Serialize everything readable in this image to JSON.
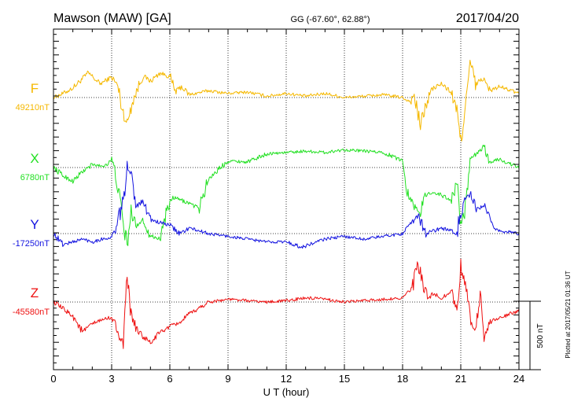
{
  "chart_data": {
    "type": "line",
    "title": "Mawson (MAW)  [GA]",
    "coords": "GG (-67.60°,  62.88°)",
    "date": "2017/04/20",
    "xlabel": "U T (hour)",
    "xlim": [
      0,
      24
    ],
    "xticks": [
      "0",
      "3",
      "6",
      "9",
      "12",
      "15",
      "18",
      "21",
      "24"
    ],
    "scale_label": "500 nT",
    "plotted_note": "Plotted at 2017/05/21 01:36 UT",
    "grid": true,
    "units": "nT",
    "series": [
      {
        "name": "F",
        "baseline_label": "49210nT",
        "baseline": 49210,
        "color": "#f5b800",
        "x": [
          0,
          0.5,
          1,
          1.8,
          2.4,
          3,
          3.3,
          3.6,
          3.8,
          4.0,
          4.3,
          4.6,
          5.0,
          5.5,
          6.0,
          6.3,
          6.6,
          7.0,
          8,
          9,
          10,
          11,
          12,
          13,
          14,
          15,
          16,
          17,
          18,
          18.4,
          18.6,
          18.9,
          19.2,
          19.5,
          20,
          20.5,
          20.8,
          21.0,
          21.2,
          21.5,
          21.8,
          22.1,
          22.5,
          23,
          24
        ],
        "values": [
          0,
          30,
          70,
          180,
          100,
          150,
          90,
          -120,
          -190,
          -60,
          50,
          160,
          120,
          180,
          150,
          40,
          80,
          20,
          50,
          30,
          40,
          10,
          30,
          10,
          30,
          0,
          10,
          20,
          0,
          -30,
          20,
          -210,
          -60,
          60,
          100,
          40,
          -100,
          -320,
          -100,
          250,
          80,
          150,
          50,
          80,
          30
        ]
      },
      {
        "name": "X",
        "baseline_label": "6780nT",
        "baseline": 6780,
        "color": "#22e022",
        "x": [
          0,
          0.5,
          1,
          1.5,
          2.0,
          2.6,
          3.0,
          3.3,
          3.6,
          3.8,
          4.0,
          4.3,
          4.6,
          5.0,
          5.5,
          5.8,
          6.2,
          6.6,
          7.0,
          7.5,
          8.0,
          9,
          10,
          11,
          12,
          13,
          14,
          15,
          16,
          17,
          18,
          18.3,
          18.6,
          18.9,
          19.2,
          19.5,
          20,
          20.5,
          20.8,
          21.0,
          21.2,
          21.5,
          21.8,
          22.2,
          22.5,
          23,
          24
        ],
        "values": [
          0,
          -60,
          -100,
          -30,
          20,
          10,
          60,
          -120,
          -420,
          -560,
          -340,
          -420,
          -380,
          -500,
          -520,
          -330,
          -220,
          -240,
          -260,
          -300,
          -80,
          50,
          40,
          100,
          110,
          120,
          110,
          130,
          120,
          110,
          50,
          -200,
          -280,
          -330,
          -200,
          -180,
          -200,
          -240,
          -120,
          -400,
          -340,
          50,
          100,
          150,
          40,
          60,
          0
        ]
      },
      {
        "name": "Y",
        "baseline_label": "-17250nT",
        "baseline": -17250,
        "color": "#1414e0",
        "x": [
          0,
          0.5,
          1,
          1.5,
          2.0,
          2.5,
          3.0,
          3.3,
          3.6,
          3.8,
          4.0,
          4.3,
          4.6,
          5.0,
          5.5,
          6.0,
          6.5,
          7.0,
          8,
          9,
          10,
          11,
          12,
          12.8,
          13.2,
          14,
          15,
          16,
          17,
          18,
          18.4,
          18.8,
          19.2,
          19.6,
          20,
          20.5,
          20.8,
          21.0,
          21.2,
          21.5,
          21.8,
          22.2,
          22.6,
          23,
          24
        ],
        "values": [
          0,
          -80,
          -60,
          -40,
          -60,
          -40,
          -30,
          60,
          260,
          460,
          440,
          200,
          250,
          100,
          80,
          60,
          0,
          40,
          0,
          -20,
          -40,
          -60,
          -60,
          -100,
          -80,
          -40,
          -20,
          -40,
          -20,
          0,
          60,
          140,
          0,
          20,
          40,
          20,
          0,
          150,
          250,
          280,
          180,
          200,
          60,
          20,
          0
        ]
      },
      {
        "name": "Z",
        "baseline_label": "-45580nT",
        "baseline": -45580,
        "color": "#ee1111",
        "x": [
          0,
          0.5,
          1,
          1.5,
          2.0,
          2.5,
          3.0,
          3.3,
          3.6,
          3.8,
          4.0,
          4.3,
          4.6,
          5.0,
          5.5,
          6.0,
          6.5,
          7.0,
          8,
          9,
          10,
          11,
          12,
          13,
          14,
          15,
          16,
          17,
          18,
          18.5,
          18.8,
          19.0,
          19.3,
          19.6,
          20,
          20.5,
          20.8,
          21.0,
          21.2,
          21.5,
          21.8,
          22.0,
          22.2,
          22.6,
          23,
          24
        ],
        "values": [
          0,
          -50,
          -100,
          -220,
          -160,
          -130,
          -110,
          -200,
          -320,
          180,
          -100,
          -200,
          -250,
          -300,
          -220,
          -180,
          -150,
          -90,
          0,
          20,
          10,
          0,
          10,
          30,
          20,
          0,
          10,
          20,
          30,
          100,
          280,
          150,
          20,
          60,
          30,
          80,
          -50,
          250,
          150,
          -150,
          -200,
          90,
          -230,
          -130,
          -120,
          -60
        ]
      }
    ]
  }
}
